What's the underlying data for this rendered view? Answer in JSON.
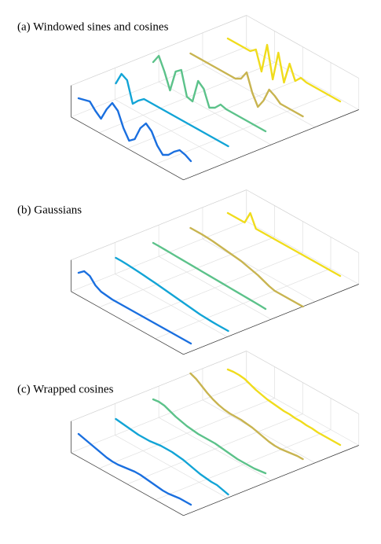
{
  "chart_data": [
    {
      "type": "waterfall",
      "title": "(a) Windowed sines and cosines",
      "x": [
        0,
        0.05,
        0.1,
        0.15,
        0.2,
        0.25,
        0.3,
        0.35,
        0.4,
        0.45,
        0.5,
        0.55,
        0.6,
        0.65,
        0.7,
        0.75,
        0.8,
        0.85,
        0.9,
        0.95,
        1
      ],
      "ylim": [
        -1,
        1
      ],
      "series": [
        {
          "color": "#1a6fdf",
          "values": [
            0,
            0.1,
            0.2,
            -0.2,
            -0.5,
            0.3,
            0.9,
            0.6,
            -0.3,
            -0.9,
            -0.6,
            0.3,
            0.8,
            0.5,
            -0.2,
            -0.6,
            -0.4,
            0,
            0.3,
            0.2,
            0
          ]
        },
        {
          "color": "#12a4d6",
          "values": [
            0,
            0.8,
            0.6,
            -0.7,
            -0.3,
            0,
            0,
            0,
            0,
            0,
            0,
            0,
            0,
            0,
            0,
            0,
            0,
            0,
            0,
            0,
            0
          ]
        },
        {
          "color": "#5cc28a",
          "values": [
            0.4,
            1,
            0.2,
            -0.8,
            0.6,
            0.9,
            -0.6,
            -0.7,
            0.8,
            0.5,
            -0.5,
            -0.3,
            0.1,
            0,
            0,
            0,
            0,
            0,
            0,
            0,
            0
          ]
        },
        {
          "color": "#c8b450",
          "values": [
            0,
            0,
            0,
            0,
            0,
            0,
            0,
            0,
            0,
            0.2,
            0.8,
            -0.3,
            -1,
            -0.4,
            0.5,
            0.3,
            0,
            0,
            0,
            0,
            0
          ]
        },
        {
          "color": "#f0dc1c",
          "values": [
            0,
            0,
            0,
            0,
            0,
            0.3,
            -0.9,
            1,
            -1,
            0.9,
            -0.8,
            0.6,
            -0.3,
            0.1,
            0,
            0,
            0,
            0,
            0,
            0,
            0
          ]
        }
      ]
    },
    {
      "type": "waterfall",
      "title": "(b) Gaussians",
      "x": [
        0,
        0.05,
        0.1,
        0.15,
        0.2,
        0.25,
        0.3,
        0.35,
        0.4,
        0.45,
        0.5,
        0.55,
        0.6,
        0.65,
        0.7,
        0.75,
        0.8,
        0.85,
        0.9,
        0.95,
        1
      ],
      "ylim": [
        -1,
        1
      ],
      "series": [
        {
          "color": "#1a6fdf",
          "values": [
            0,
            0.3,
            0.2,
            -0.2,
            -0.4,
            -0.45,
            -0.5,
            -0.5,
            -0.5,
            -0.5,
            -0.5,
            -0.5,
            -0.5,
            -0.5,
            -0.5,
            -0.5,
            -0.5,
            -0.5,
            -0.5,
            -0.5,
            -0.5
          ]
        },
        {
          "color": "#12a4d6",
          "values": [
            0,
            0,
            -0.02,
            -0.05,
            -0.08,
            -0.12,
            -0.16,
            -0.2,
            -0.25,
            -0.3,
            -0.35,
            -0.4,
            -0.45,
            -0.5,
            -0.55,
            -0.6,
            -0.62,
            -0.64,
            -0.65,
            -0.65,
            -0.65
          ]
        },
        {
          "color": "#5cc28a",
          "values": [
            0,
            0,
            -0.01,
            -0.02,
            -0.03,
            -0.04,
            -0.05,
            -0.06,
            -0.07,
            -0.08,
            -0.09,
            -0.1,
            -0.11,
            -0.12,
            -0.13,
            -0.14,
            -0.15,
            -0.16,
            -0.17,
            -0.18,
            -0.2
          ]
        },
        {
          "color": "#c8b450",
          "values": [
            0,
            0,
            0,
            -0.02,
            -0.05,
            -0.1,
            -0.15,
            -0.2,
            -0.25,
            -0.3,
            -0.4,
            -0.5,
            -0.6,
            -0.75,
            -0.9,
            -1,
            -1,
            -1,
            -1,
            -1,
            -1
          ]
        },
        {
          "color": "#f0dc1c",
          "values": [
            0,
            0,
            0,
            0,
            0.8,
            0,
            0,
            0,
            0,
            0,
            0,
            0,
            0,
            0,
            0,
            0,
            0,
            0,
            0,
            0,
            0
          ]
        }
      ]
    },
    {
      "type": "waterfall",
      "title": "(c) Wrapped cosines",
      "x": [
        0,
        0.05,
        0.1,
        0.15,
        0.2,
        0.25,
        0.3,
        0.35,
        0.4,
        0.45,
        0.5,
        0.55,
        0.6,
        0.65,
        0.7,
        0.75,
        0.8,
        0.85,
        0.9,
        0.95,
        1
      ],
      "ylim": [
        -1,
        1
      ],
      "series": [
        {
          "color": "#1a6fdf",
          "values": [
            0,
            -0.1,
            -0.2,
            -0.3,
            -0.4,
            -0.5,
            -0.55,
            -0.55,
            -0.5,
            -0.45,
            -0.4,
            -0.4,
            -0.45,
            -0.5,
            -0.55,
            -0.6,
            -0.6,
            -0.55,
            -0.5,
            -0.5,
            -0.5
          ]
        },
        {
          "color": "#12a4d6",
          "values": [
            0,
            -0.05,
            -0.1,
            -0.15,
            -0.2,
            -0.2,
            -0.2,
            -0.15,
            -0.1,
            -0.1,
            -0.1,
            -0.15,
            -0.2,
            -0.3,
            -0.4,
            -0.5,
            -0.55,
            -0.6,
            -0.6,
            -0.7,
            -0.8
          ]
        },
        {
          "color": "#5cc28a",
          "values": [
            0.3,
            0.35,
            0.3,
            0.15,
            0,
            -0.1,
            -0.2,
            -0.25,
            -0.3,
            -0.3,
            -0.3,
            -0.3,
            -0.35,
            -0.4,
            -0.45,
            -0.5,
            -0.5,
            -0.5,
            -0.5,
            -0.45,
            -0.4
          ]
        },
        {
          "color": "#c8b450",
          "values": [
            1,
            0.85,
            0.6,
            0.35,
            0.15,
            0,
            -0.1,
            -0.15,
            -0.15,
            -0.15,
            -0.2,
            -0.25,
            -0.35,
            -0.45,
            -0.55,
            -0.6,
            -0.6,
            -0.55,
            -0.5,
            -0.45,
            -0.45
          ]
        },
        {
          "color": "#f0dc1c",
          "values": [
            0.3,
            0.35,
            0.35,
            0.3,
            0.15,
            0,
            -0.1,
            -0.2,
            -0.25,
            -0.3,
            -0.35,
            -0.35,
            -0.4,
            -0.4,
            -0.45,
            -0.45,
            -0.5,
            -0.5,
            -0.5,
            -0.5,
            -0.5
          ]
        }
      ]
    }
  ]
}
